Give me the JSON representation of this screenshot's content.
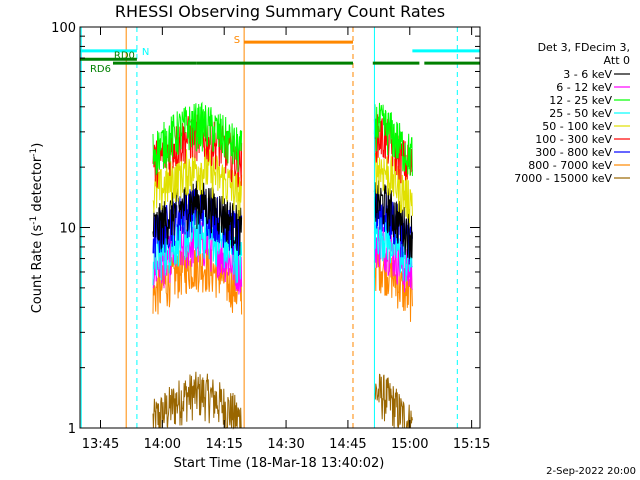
{
  "chart_data": {
    "type": "line",
    "title": "RHESSI Observing Summary Count Rates",
    "xlabel": "Start Time (18-Mar-18 13:40:02)",
    "ylabel_main": "Count Rate (s",
    "ylabel_sup1": "-1",
    "ylabel_mid": " detector",
    "ylabel_sup2": "-1",
    "ylabel_end": ")",
    "yscale": "log",
    "ylim": [
      1,
      100
    ],
    "xlim_minutes": [
      0,
      97
    ],
    "x_ticks": [
      {
        "label": "13:45",
        "min": 4.97
      },
      {
        "label": "14:00",
        "min": 19.97
      },
      {
        "label": "14:15",
        "min": 34.97
      },
      {
        "label": "14:30",
        "min": 49.97
      },
      {
        "label": "14:45",
        "min": 64.97
      },
      {
        "label": "15:00",
        "min": 79.97
      },
      {
        "label": "15:15",
        "min": 94.97
      }
    ],
    "y_ticks": [
      {
        "label": "1",
        "value": 1
      },
      {
        "label": "10",
        "value": 10
      },
      {
        "label": "100",
        "value": 100
      }
    ],
    "legend_header": [
      "Det 3, FDecim 3,",
      "Att 0"
    ],
    "legend_placement": "right",
    "timestamp": "2-Sep-2022 20:00",
    "series": [
      {
        "name": "3 - 6 keV",
        "color": "#000000",
        "peak": 13.5
      },
      {
        "name": "6 - 12 keV",
        "color": "#ff00ff",
        "peak": 8.5
      },
      {
        "name": "12 - 25 keV",
        "color": "#00ff00",
        "peak": 33
      },
      {
        "name": "25 - 50 keV",
        "color": "#00ffff",
        "peak": 9.5
      },
      {
        "name": "50 - 100 keV",
        "color": "#e0e000",
        "peak": 20
      },
      {
        "name": "100 - 300 keV",
        "color": "#ff0000",
        "peak": 29
      },
      {
        "name": "300 - 800 keV",
        "color": "#0000ff",
        "peak": 12.5
      },
      {
        "name": "800 - 7000 keV",
        "color": "#ff8800",
        "peak": 6.5
      },
      {
        "name": "7000 - 15000 keV",
        "color": "#996600",
        "peak": 1.5
      }
    ],
    "observing_segments": [
      {
        "start_min": 17.7,
        "end_min": 39.2
      },
      {
        "start_min": 71.4,
        "end_min": 80.6
      }
    ],
    "state_bars": [
      {
        "label": "N",
        "color": "#00ffff",
        "level": 76,
        "segments": [
          [
            0,
            13.8
          ],
          [
            80.6,
            97
          ]
        ]
      },
      {
        "label": "RD0",
        "color": "#008000",
        "level": 69,
        "segments": [
          [
            0,
            13.8
          ]
        ]
      },
      {
        "label": "RD6",
        "color": "#008000",
        "level": 66,
        "segments": [
          [
            8,
            28.2
          ],
          [
            28.2,
            66.2
          ],
          [
            71,
            82.3
          ],
          [
            83.5,
            97
          ]
        ]
      },
      {
        "label": "S",
        "color": "#ff8800",
        "level": 84,
        "segments": [
          [
            39.8,
            66.2
          ]
        ]
      }
    ],
    "vertical_markers": [
      {
        "min": 0.3,
        "color": "#00ffff",
        "style": "solid"
      },
      {
        "min": 13.8,
        "color": "#00ffff",
        "style": "dashed"
      },
      {
        "min": 11.2,
        "color": "#ff8800",
        "style": "solid"
      },
      {
        "min": 39.8,
        "color": "#ff8800",
        "style": "solid"
      },
      {
        "min": 66.2,
        "color": "#ff8800",
        "style": "dashed"
      },
      {
        "min": 71.4,
        "color": "#00ffff",
        "style": "solid"
      },
      {
        "min": 91.5,
        "color": "#00ffff",
        "style": "dashed"
      }
    ]
  }
}
